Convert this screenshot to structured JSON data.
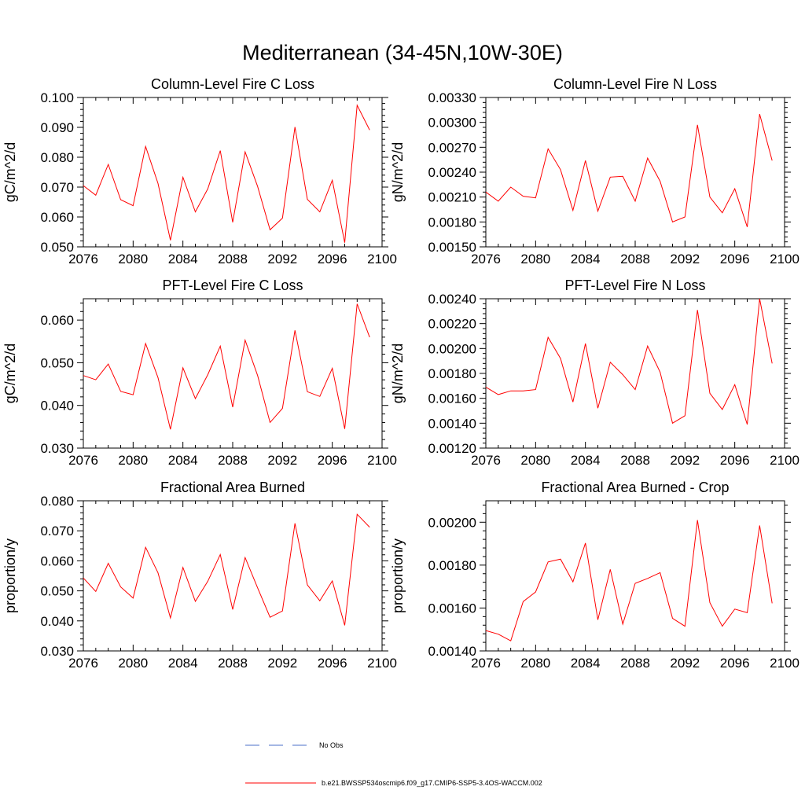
{
  "page_title": "Mediterranean (34-45N,10W-30E)",
  "colors": {
    "model_line": "#ff0000",
    "obs_line": "#4b6fc9",
    "axis": "#000000"
  },
  "legend": {
    "obs_label": "No Obs",
    "model_label": "b.e21.BWSSP534oscmip6.f09_g17.CMIP6-SSP5-3.4OS-WACCM.002"
  },
  "chart_data": [
    {
      "type": "line",
      "title": "Column-Level Fire C Loss",
      "ylabel": "gC/m^2/d",
      "xlim": [
        2076,
        2100
      ],
      "ylim": [
        0.05,
        0.1
      ],
      "x_ticks": [
        "2076",
        "2080",
        "2084",
        "2088",
        "2092",
        "2096",
        "2100"
      ],
      "y_ticks": [
        "0.050",
        "0.060",
        "0.070",
        "0.080",
        "0.090",
        "0.100"
      ],
      "x": [
        2076,
        2077,
        2078,
        2079,
        2080,
        2081,
        2082,
        2083,
        2084,
        2085,
        2086,
        2087,
        2088,
        2089,
        2090,
        2091,
        2092,
        2093,
        2094,
        2095,
        2096,
        2097,
        2098,
        2099
      ],
      "series": [
        {
          "name": "b.e21.BWSSP534oscmip6.f09_g17.CMIP6-SSP5-3.4OS-WACCM.002",
          "values": [
            0.0705,
            0.0673,
            0.0776,
            0.0658,
            0.0638,
            0.0836,
            0.0712,
            0.0522,
            0.0733,
            0.0617,
            0.0694,
            0.0822,
            0.0582,
            0.0818,
            0.0702,
            0.0557,
            0.0596,
            0.0901,
            0.0659,
            0.0617,
            0.0723,
            0.0514,
            0.0974,
            0.0891
          ]
        }
      ]
    },
    {
      "type": "line",
      "title": "Column-Level Fire N Loss",
      "ylabel": "gN/m^2/d",
      "xlim": [
        2076,
        2100
      ],
      "ylim": [
        0.0015,
        0.0033
      ],
      "x_ticks": [
        "2076",
        "2080",
        "2084",
        "2088",
        "2092",
        "2096",
        "2100"
      ],
      "y_ticks": [
        "0.00150",
        "0.00180",
        "0.00210",
        "0.00240",
        "0.00270",
        "0.00300",
        "0.00330"
      ],
      "x": [
        2076,
        2077,
        2078,
        2079,
        2080,
        2081,
        2082,
        2083,
        2084,
        2085,
        2086,
        2087,
        2088,
        2089,
        2090,
        2091,
        2092,
        2093,
        2094,
        2095,
        2096,
        2097,
        2098,
        2099
      ],
      "series": [
        {
          "name": "b.e21.BWSSP534oscmip6.f09_g17.CMIP6-SSP5-3.4OS-WACCM.002",
          "values": [
            0.00216,
            0.00205,
            0.00222,
            0.00211,
            0.00209,
            0.00268,
            0.00243,
            0.00194,
            0.00254,
            0.00193,
            0.00234,
            0.00235,
            0.00205,
            0.00257,
            0.00229,
            0.0018,
            0.00186,
            0.00297,
            0.0021,
            0.00191,
            0.0022,
            0.00174,
            0.0031,
            0.00254
          ]
        }
      ]
    },
    {
      "type": "line",
      "title": "PFT-Level Fire C Loss",
      "ylabel": "gC/m^2/d",
      "xlim": [
        2076,
        2100
      ],
      "ylim": [
        0.03,
        0.065
      ],
      "x_ticks": [
        "2076",
        "2080",
        "2084",
        "2088",
        "2092",
        "2096",
        "2100"
      ],
      "y_ticks": [
        "0.030",
        "0.040",
        "0.050",
        "0.060"
      ],
      "x": [
        2076,
        2077,
        2078,
        2079,
        2080,
        2081,
        2082,
        2083,
        2084,
        2085,
        2086,
        2087,
        2088,
        2089,
        2090,
        2091,
        2092,
        2093,
        2094,
        2095,
        2096,
        2097,
        2098,
        2099
      ],
      "series": [
        {
          "name": "b.e21.BWSSP534oscmip6.f09_g17.CMIP6-SSP5-3.4OS-WACCM.002",
          "values": [
            0.047,
            0.046,
            0.0497,
            0.0433,
            0.0425,
            0.0545,
            0.0465,
            0.0344,
            0.0488,
            0.0416,
            0.0472,
            0.0539,
            0.0396,
            0.0553,
            0.047,
            0.036,
            0.0393,
            0.0576,
            0.0432,
            0.0421,
            0.0487,
            0.0345,
            0.0638,
            0.056
          ]
        }
      ]
    },
    {
      "type": "line",
      "title": "PFT-Level Fire N Loss",
      "ylabel": "gN/m^2/d",
      "xlim": [
        2076,
        2100
      ],
      "ylim": [
        0.0012,
        0.0024
      ],
      "x_ticks": [
        "2076",
        "2080",
        "2084",
        "2088",
        "2092",
        "2096",
        "2100"
      ],
      "y_ticks": [
        "0.00120",
        "0.00140",
        "0.00160",
        "0.00180",
        "0.00200",
        "0.00220",
        "0.00240"
      ],
      "x": [
        2076,
        2077,
        2078,
        2079,
        2080,
        2081,
        2082,
        2083,
        2084,
        2085,
        2086,
        2087,
        2088,
        2089,
        2090,
        2091,
        2092,
        2093,
        2094,
        2095,
        2096,
        2097,
        2098,
        2099
      ],
      "series": [
        {
          "name": "b.e21.BWSSP534oscmip6.f09_g17.CMIP6-SSP5-3.4OS-WACCM.002",
          "values": [
            0.00169,
            0.00163,
            0.00166,
            0.00166,
            0.00167,
            0.00209,
            0.00192,
            0.00157,
            0.00204,
            0.00152,
            0.00189,
            0.00179,
            0.00167,
            0.00202,
            0.00181,
            0.0014,
            0.00146,
            0.00231,
            0.00164,
            0.00151,
            0.00171,
            0.00139,
            0.0024,
            0.00188
          ]
        }
      ]
    },
    {
      "type": "line",
      "title": "Fractional Area Burned",
      "ylabel": "proportion/y",
      "xlim": [
        2076,
        2100
      ],
      "ylim": [
        0.03,
        0.08
      ],
      "x_ticks": [
        "2076",
        "2080",
        "2084",
        "2088",
        "2092",
        "2096",
        "2100"
      ],
      "y_ticks": [
        "0.030",
        "0.040",
        "0.050",
        "0.060",
        "0.070",
        "0.080"
      ],
      "x": [
        2076,
        2077,
        2078,
        2079,
        2080,
        2081,
        2082,
        2083,
        2084,
        2085,
        2086,
        2087,
        2088,
        2089,
        2090,
        2091,
        2092,
        2093,
        2094,
        2095,
        2096,
        2097,
        2098,
        2099
      ],
      "series": [
        {
          "name": "b.e21.BWSSP534oscmip6.f09_g17.CMIP6-SSP5-3.4OS-WACCM.002",
          "values": [
            0.0543,
            0.0498,
            0.0592,
            0.0513,
            0.0476,
            0.0645,
            0.056,
            0.041,
            0.0578,
            0.0465,
            0.0532,
            0.0621,
            0.0438,
            0.0611,
            0.051,
            0.0412,
            0.0433,
            0.0725,
            0.052,
            0.0467,
            0.0533,
            0.0385,
            0.0755,
            0.0712
          ]
        }
      ]
    },
    {
      "type": "line",
      "title": "Fractional Area Burned - Crop",
      "ylabel": "proportion/y",
      "xlim": [
        2076,
        2100
      ],
      "ylim": [
        0.0014,
        0.0021
      ],
      "x_ticks": [
        "2076",
        "2080",
        "2084",
        "2088",
        "2092",
        "2096",
        "2100"
      ],
      "y_ticks": [
        "0.00140",
        "0.00160",
        "0.00180",
        "0.00200"
      ],
      "x": [
        2076,
        2077,
        2078,
        2079,
        2080,
        2081,
        2082,
        2083,
        2084,
        2085,
        2086,
        2087,
        2088,
        2089,
        2090,
        2091,
        2092,
        2093,
        2094,
        2095,
        2096,
        2097,
        2098,
        2099
      ],
      "series": [
        {
          "name": "b.e21.BWSSP534oscmip6.f09_g17.CMIP6-SSP5-3.4OS-WACCM.002",
          "values": [
            0.001495,
            0.001478,
            0.001447,
            0.00163,
            0.001675,
            0.001815,
            0.001828,
            0.001722,
            0.001903,
            0.001545,
            0.00178,
            0.001525,
            0.001715,
            0.001738,
            0.001765,
            0.001552,
            0.001515,
            0.00201,
            0.001625,
            0.001515,
            0.001595,
            0.001578,
            0.001985,
            0.001622
          ]
        }
      ]
    }
  ]
}
